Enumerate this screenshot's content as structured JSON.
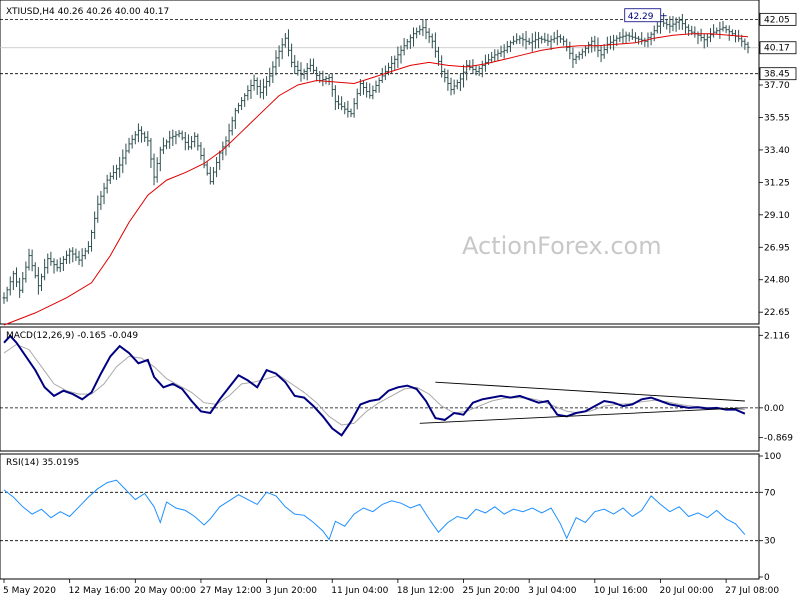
{
  "colors": {
    "price_bars": "#2f4f4f",
    "ma_line": "#e00000",
    "macd_line": "#000080",
    "signal_line": "#a9a9a9",
    "rsi_line": "#1e90ff",
    "trendline": "#000000",
    "watermark": "#c8c8c8"
  },
  "watermark": "ActionForex.com",
  "chart_data": [
    {
      "type": "ohlc",
      "title": "XTIUSD,H4  40.26 40.26 40.00 40.17",
      "ylim": [
        22.0,
        43.2
      ],
      "y_ticks": [
        "42.05",
        "40.17",
        "38.45",
        "37.70",
        "35.55",
        "33.40",
        "31.25",
        "29.10",
        "26.95",
        "24.80",
        "22.65"
      ],
      "tick_values": [
        42.05,
        40.17,
        38.45,
        37.7,
        35.55,
        33.4,
        31.25,
        29.1,
        26.95,
        24.8,
        22.65
      ],
      "hlines": [
        42.05,
        38.45
      ],
      "peak_label": "42.29",
      "peak_value": 42.29,
      "last_price": 40.17,
      "close_path": [
        [
          0,
          23.6
        ],
        [
          3,
          25.2
        ],
        [
          5,
          24.1
        ],
        [
          8,
          26.4
        ],
        [
          11,
          24.4
        ],
        [
          14,
          26.2
        ],
        [
          17,
          25.6
        ],
        [
          21,
          26.7
        ],
        [
          24,
          26.1
        ],
        [
          27,
          27.0
        ],
        [
          30,
          29.8
        ],
        [
          33,
          31.4
        ],
        [
          37,
          32.4
        ],
        [
          40,
          33.8
        ],
        [
          43,
          34.7
        ],
        [
          46,
          34.0
        ],
        [
          48,
          31.6
        ],
        [
          50,
          33.4
        ],
        [
          53,
          34.2
        ],
        [
          56,
          34.5
        ],
        [
          59,
          33.6
        ],
        [
          61,
          34.3
        ],
        [
          64,
          32.4
        ],
        [
          66,
          31.3
        ],
        [
          69,
          33.2
        ],
        [
          71,
          34.0
        ],
        [
          74,
          36.0
        ],
        [
          77,
          37.0
        ],
        [
          80,
          38.0
        ],
        [
          82,
          37.2
        ],
        [
          85,
          38.3
        ],
        [
          87,
          39.5
        ],
        [
          90,
          40.8
        ],
        [
          92,
          39.2
        ],
        [
          95,
          38.4
        ],
        [
          98,
          39.0
        ],
        [
          101,
          38.0
        ],
        [
          104,
          38.2
        ],
        [
          106,
          36.6
        ],
        [
          109,
          36.1
        ],
        [
          111,
          35.8
        ],
        [
          114,
          37.8
        ],
        [
          117,
          37.0
        ],
        [
          120,
          38.0
        ],
        [
          122,
          38.6
        ],
        [
          125,
          39.4
        ],
        [
          128,
          40.3
        ],
        [
          131,
          41.1
        ],
        [
          134,
          41.5
        ],
        [
          137,
          40.6
        ],
        [
          140,
          38.6
        ],
        [
          143,
          37.4
        ],
        [
          146,
          38.1
        ],
        [
          148,
          39.0
        ],
        [
          151,
          38.6
        ],
        [
          154,
          39.2
        ],
        [
          157,
          39.7
        ],
        [
          160,
          40.0
        ],
        [
          162,
          40.5
        ],
        [
          165,
          40.8
        ],
        [
          168,
          40.5
        ],
        [
          171,
          40.8
        ],
        [
          174,
          40.6
        ],
        [
          177,
          40.9
        ],
        [
          179,
          40.6
        ],
        [
          182,
          39.4
        ],
        [
          185,
          39.9
        ],
        [
          188,
          40.6
        ],
        [
          191,
          39.7
        ],
        [
          193,
          40.4
        ],
        [
          196,
          40.8
        ],
        [
          199,
          41.0
        ],
        [
          202,
          40.8
        ],
        [
          205,
          40.6
        ],
        [
          208,
          41.3
        ],
        [
          210,
          41.9
        ],
        [
          213,
          41.6
        ],
        [
          216,
          42.0
        ],
        [
          219,
          41.3
        ],
        [
          222,
          41.0
        ],
        [
          224,
          40.7
        ],
        [
          227,
          41.2
        ],
        [
          230,
          41.5
        ],
        [
          233,
          41.1
        ],
        [
          236,
          40.6
        ],
        [
          238,
          40.2
        ]
      ],
      "ma_path": [
        [
          0,
          21.8
        ],
        [
          10,
          22.6
        ],
        [
          20,
          23.6
        ],
        [
          28,
          24.6
        ],
        [
          34,
          26.4
        ],
        [
          40,
          28.6
        ],
        [
          46,
          30.4
        ],
        [
          52,
          31.4
        ],
        [
          58,
          31.9
        ],
        [
          64,
          32.5
        ],
        [
          70,
          33.4
        ],
        [
          76,
          34.6
        ],
        [
          82,
          35.8
        ],
        [
          88,
          37.0
        ],
        [
          94,
          37.7
        ],
        [
          100,
          38.0
        ],
        [
          106,
          37.9
        ],
        [
          112,
          37.8
        ],
        [
          118,
          38.2
        ],
        [
          124,
          38.6
        ],
        [
          130,
          39.0
        ],
        [
          136,
          39.2
        ],
        [
          142,
          39.0
        ],
        [
          148,
          38.9
        ],
        [
          154,
          39.1
        ],
        [
          160,
          39.4
        ],
        [
          166,
          39.7
        ],
        [
          172,
          40.0
        ],
        [
          178,
          40.2
        ],
        [
          184,
          40.3
        ],
        [
          190,
          40.3
        ],
        [
          196,
          40.4
        ],
        [
          202,
          40.5
        ],
        [
          208,
          40.8
        ],
        [
          214,
          41.0
        ],
        [
          220,
          41.1
        ],
        [
          226,
          41.1
        ],
        [
          232,
          41.0
        ],
        [
          238,
          40.9
        ]
      ],
      "x_ticks": [
        "5 May 2020",
        "12 May 16:00",
        "20 May 00:00",
        "27 May 12:00",
        "3 Jun 20:00",
        "11 Jun 04:00",
        "18 Jun 12:00",
        "25 Jun 20:00",
        "3 Jul 04:00",
        "10 Jul 16:00",
        "20 Jul 00:00",
        "27 Jul 08:00"
      ],
      "x_tick_index": [
        0,
        21,
        42,
        63,
        84,
        105,
        126,
        147,
        168,
        189,
        210,
        231
      ]
    },
    {
      "type": "line",
      "title": "MACD(12,26,9) -0.165 -0.049",
      "ylim": [
        -1.2,
        2.3
      ],
      "y_ticks": [
        "2.116",
        "0.00",
        "-0.869"
      ],
      "tick_values": [
        2.116,
        0.0,
        -0.869
      ],
      "macd_path": [
        [
          0,
          1.9
        ],
        [
          2,
          2.1
        ],
        [
          4,
          1.9
        ],
        [
          7,
          1.5
        ],
        [
          10,
          1.1
        ],
        [
          13,
          0.6
        ],
        [
          16,
          0.35
        ],
        [
          19,
          0.5
        ],
        [
          22,
          0.4
        ],
        [
          25,
          0.25
        ],
        [
          28,
          0.45
        ],
        [
          31,
          1.0
        ],
        [
          34,
          1.5
        ],
        [
          37,
          1.8
        ],
        [
          40,
          1.6
        ],
        [
          43,
          1.3
        ],
        [
          46,
          1.4
        ],
        [
          48,
          0.9
        ],
        [
          51,
          0.6
        ],
        [
          54,
          0.7
        ],
        [
          57,
          0.55
        ],
        [
          60,
          0.2
        ],
        [
          63,
          -0.1
        ],
        [
          66,
          -0.15
        ],
        [
          69,
          0.25
        ],
        [
          72,
          0.6
        ],
        [
          75,
          0.95
        ],
        [
          78,
          0.8
        ],
        [
          81,
          0.6
        ],
        [
          84,
          1.1
        ],
        [
          87,
          1.0
        ],
        [
          90,
          0.75
        ],
        [
          93,
          0.35
        ],
        [
          96,
          0.3
        ],
        [
          99,
          0.05
        ],
        [
          102,
          -0.25
        ],
        [
          105,
          -0.6
        ],
        [
          108,
          -0.8
        ],
        [
          111,
          -0.4
        ],
        [
          114,
          0.1
        ],
        [
          117,
          0.2
        ],
        [
          120,
          0.25
        ],
        [
          123,
          0.5
        ],
        [
          126,
          0.6
        ],
        [
          129,
          0.65
        ],
        [
          132,
          0.55
        ],
        [
          135,
          0.2
        ],
        [
          138,
          -0.3
        ],
        [
          141,
          -0.35
        ],
        [
          144,
          -0.15
        ],
        [
          147,
          -0.2
        ],
        [
          150,
          0.15
        ],
        [
          153,
          0.25
        ],
        [
          156,
          0.3
        ],
        [
          159,
          0.35
        ],
        [
          162,
          0.3
        ],
        [
          165,
          0.35
        ],
        [
          168,
          0.25
        ],
        [
          171,
          0.15
        ],
        [
          174,
          0.2
        ],
        [
          177,
          -0.2
        ],
        [
          180,
          -0.25
        ],
        [
          183,
          -0.15
        ],
        [
          186,
          -0.1
        ],
        [
          189,
          0.05
        ],
        [
          192,
          0.2
        ],
        [
          195,
          0.15
        ],
        [
          198,
          0.05
        ],
        [
          201,
          0.1
        ],
        [
          204,
          0.25
        ],
        [
          207,
          0.3
        ],
        [
          210,
          0.2
        ],
        [
          213,
          0.1
        ],
        [
          216,
          0.05
        ],
        [
          219,
          0.0
        ],
        [
          222,
          0.02
        ],
        [
          225,
          -0.02
        ],
        [
          228,
          0.0
        ],
        [
          231,
          -0.05
        ],
        [
          234,
          -0.05
        ],
        [
          237,
          -0.17
        ]
      ],
      "signal_path": [
        [
          0,
          1.6
        ],
        [
          4,
          1.85
        ],
        [
          8,
          1.7
        ],
        [
          12,
          1.2
        ],
        [
          16,
          0.7
        ],
        [
          20,
          0.5
        ],
        [
          24,
          0.4
        ],
        [
          28,
          0.4
        ],
        [
          32,
          0.7
        ],
        [
          36,
          1.2
        ],
        [
          40,
          1.5
        ],
        [
          44,
          1.45
        ],
        [
          48,
          1.2
        ],
        [
          52,
          0.85
        ],
        [
          56,
          0.65
        ],
        [
          60,
          0.45
        ],
        [
          64,
          0.15
        ],
        [
          68,
          0.1
        ],
        [
          72,
          0.35
        ],
        [
          76,
          0.7
        ],
        [
          80,
          0.75
        ],
        [
          84,
          0.85
        ],
        [
          88,
          0.95
        ],
        [
          92,
          0.7
        ],
        [
          96,
          0.45
        ],
        [
          100,
          0.15
        ],
        [
          104,
          -0.25
        ],
        [
          108,
          -0.5
        ],
        [
          112,
          -0.45
        ],
        [
          116,
          -0.1
        ],
        [
          120,
          0.15
        ],
        [
          124,
          0.35
        ],
        [
          128,
          0.55
        ],
        [
          132,
          0.6
        ],
        [
          136,
          0.4
        ],
        [
          140,
          0.05
        ],
        [
          144,
          -0.15
        ],
        [
          148,
          -0.1
        ],
        [
          152,
          0.05
        ],
        [
          156,
          0.2
        ],
        [
          160,
          0.28
        ],
        [
          164,
          0.3
        ],
        [
          168,
          0.28
        ],
        [
          172,
          0.2
        ],
        [
          176,
          0.05
        ],
        [
          180,
          -0.1
        ],
        [
          184,
          -0.15
        ],
        [
          188,
          -0.08
        ],
        [
          192,
          0.05
        ],
        [
          196,
          0.1
        ],
        [
          200,
          0.12
        ],
        [
          204,
          0.18
        ],
        [
          208,
          0.22
        ],
        [
          212,
          0.18
        ],
        [
          216,
          0.1
        ],
        [
          220,
          0.05
        ],
        [
          224,
          0.02
        ],
        [
          228,
          0.0
        ],
        [
          232,
          -0.02
        ],
        [
          237,
          -0.05
        ]
      ],
      "trendlines": [
        [
          [
            138,
            0.75
          ],
          [
            237,
            0.2
          ]
        ],
        [
          [
            133,
            -0.45
          ],
          [
            237,
            0.0
          ]
        ]
      ]
    },
    {
      "type": "line",
      "title": "RSI(14) 35.0195",
      "ylim": [
        0,
        100
      ],
      "y_ticks": [
        "100",
        "70",
        "30",
        "0"
      ],
      "tick_values": [
        100,
        70,
        30,
        0
      ],
      "levels": [
        70,
        30
      ],
      "rsi_path": [
        [
          0,
          72
        ],
        [
          3,
          66
        ],
        [
          6,
          58
        ],
        [
          9,
          52
        ],
        [
          12,
          56
        ],
        [
          15,
          49
        ],
        [
          18,
          54
        ],
        [
          21,
          50
        ],
        [
          24,
          58
        ],
        [
          27,
          66
        ],
        [
          30,
          73
        ],
        [
          33,
          78
        ],
        [
          36,
          80
        ],
        [
          39,
          72
        ],
        [
          42,
          64
        ],
        [
          45,
          69
        ],
        [
          48,
          58
        ],
        [
          50,
          45
        ],
        [
          52,
          62
        ],
        [
          55,
          57
        ],
        [
          58,
          55
        ],
        [
          61,
          50
        ],
        [
          64,
          43
        ],
        [
          66,
          48
        ],
        [
          69,
          58
        ],
        [
          72,
          63
        ],
        [
          75,
          68
        ],
        [
          78,
          64
        ],
        [
          81,
          60
        ],
        [
          84,
          70
        ],
        [
          87,
          67
        ],
        [
          90,
          58
        ],
        [
          93,
          52
        ],
        [
          96,
          51
        ],
        [
          99,
          45
        ],
        [
          102,
          38
        ],
        [
          104,
          31
        ],
        [
          106,
          46
        ],
        [
          109,
          42
        ],
        [
          112,
          52
        ],
        [
          115,
          57
        ],
        [
          118,
          54
        ],
        [
          121,
          60
        ],
        [
          124,
          63
        ],
        [
          127,
          61
        ],
        [
          130,
          57
        ],
        [
          133,
          60
        ],
        [
          136,
          48
        ],
        [
          139,
          37
        ],
        [
          142,
          45
        ],
        [
          145,
          50
        ],
        [
          148,
          48
        ],
        [
          151,
          56
        ],
        [
          154,
          53
        ],
        [
          157,
          58
        ],
        [
          160,
          52
        ],
        [
          163,
          56
        ],
        [
          166,
          54
        ],
        [
          169,
          57
        ],
        [
          172,
          53
        ],
        [
          175,
          57
        ],
        [
          178,
          44
        ],
        [
          180,
          32
        ],
        [
          183,
          49
        ],
        [
          186,
          45
        ],
        [
          189,
          54
        ],
        [
          192,
          56
        ],
        [
          195,
          52
        ],
        [
          198,
          57
        ],
        [
          201,
          50
        ],
        [
          204,
          55
        ],
        [
          207,
          67
        ],
        [
          210,
          60
        ],
        [
          213,
          54
        ],
        [
          216,
          58
        ],
        [
          219,
          50
        ],
        [
          222,
          53
        ],
        [
          225,
          49
        ],
        [
          228,
          55
        ],
        [
          231,
          48
        ],
        [
          234,
          44
        ],
        [
          237,
          35
        ]
      ]
    }
  ]
}
